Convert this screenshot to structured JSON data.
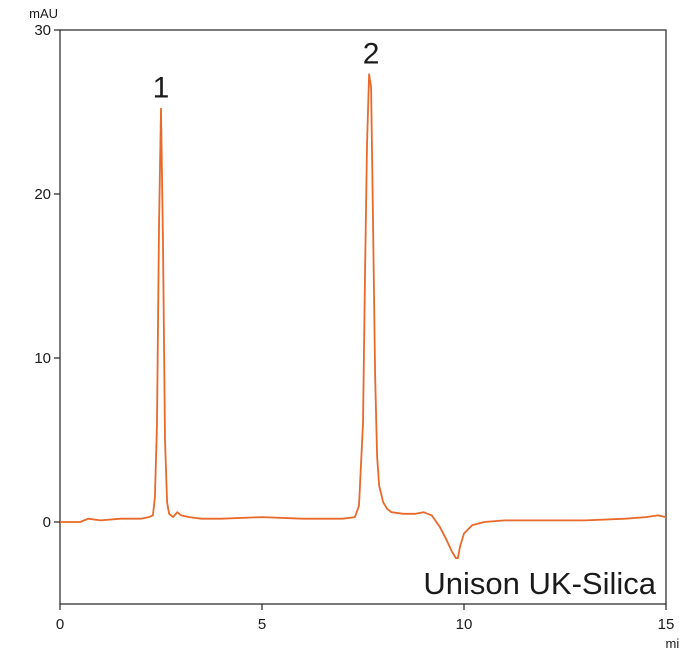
{
  "chart_data": {
    "type": "line",
    "title": "",
    "x_unit": "min",
    "y_unit": "mAU",
    "xlim": [
      0,
      15
    ],
    "ylim": [
      -5,
      30
    ],
    "x_ticks": [
      0,
      5,
      10,
      15
    ],
    "y_ticks": [
      0,
      10,
      20,
      30
    ],
    "x_tick_labels": [
      "0",
      "5",
      "10",
      "15"
    ],
    "y_tick_labels": [
      "0",
      "10",
      "20",
      "30"
    ],
    "grid": false,
    "line_color": "#e8692a",
    "annotation": "Unison UK-Silica",
    "peaks": [
      {
        "label": "1",
        "retention_time": 2.5,
        "height": 25.2
      },
      {
        "label": "2",
        "retention_time": 7.7,
        "height": 27.3
      }
    ],
    "dip": {
      "time": 9.85,
      "depth": -2.2
    },
    "series": [
      {
        "x": [
          0,
          0.5,
          0.7,
          1.0,
          1.5,
          2.0,
          2.2,
          2.3,
          2.35,
          2.4,
          2.45,
          2.5,
          2.55,
          2.6,
          2.65,
          2.7,
          2.8,
          2.9,
          3.0,
          3.2,
          3.5,
          4.0,
          5.0,
          6.0,
          7.0,
          7.3,
          7.4,
          7.5,
          7.55,
          7.6,
          7.65,
          7.7,
          7.75,
          7.8,
          7.85,
          7.9,
          8.0,
          8.1,
          8.2,
          8.5,
          8.8,
          9.0,
          9.2,
          9.4,
          9.55,
          9.7,
          9.8,
          9.85,
          9.9,
          10.0,
          10.2,
          10.5,
          11.0,
          12.0,
          13.0,
          14.0,
          14.5,
          14.8,
          15.0
        ],
        "y": [
          0.0,
          0.0,
          0.2,
          0.1,
          0.2,
          0.2,
          0.3,
          0.4,
          1.5,
          6.0,
          18.0,
          25.2,
          17.0,
          5.0,
          1.2,
          0.5,
          0.3,
          0.6,
          0.4,
          0.3,
          0.2,
          0.2,
          0.3,
          0.2,
          0.2,
          0.3,
          1.0,
          6.0,
          15.0,
          23.0,
          27.3,
          26.5,
          18.0,
          9.0,
          4.0,
          2.2,
          1.2,
          0.8,
          0.6,
          0.5,
          0.5,
          0.6,
          0.4,
          -0.3,
          -1.0,
          -1.8,
          -2.2,
          -2.2,
          -1.5,
          -0.7,
          -0.2,
          0.0,
          0.1,
          0.1,
          0.1,
          0.2,
          0.3,
          0.4,
          0.3
        ]
      }
    ]
  }
}
